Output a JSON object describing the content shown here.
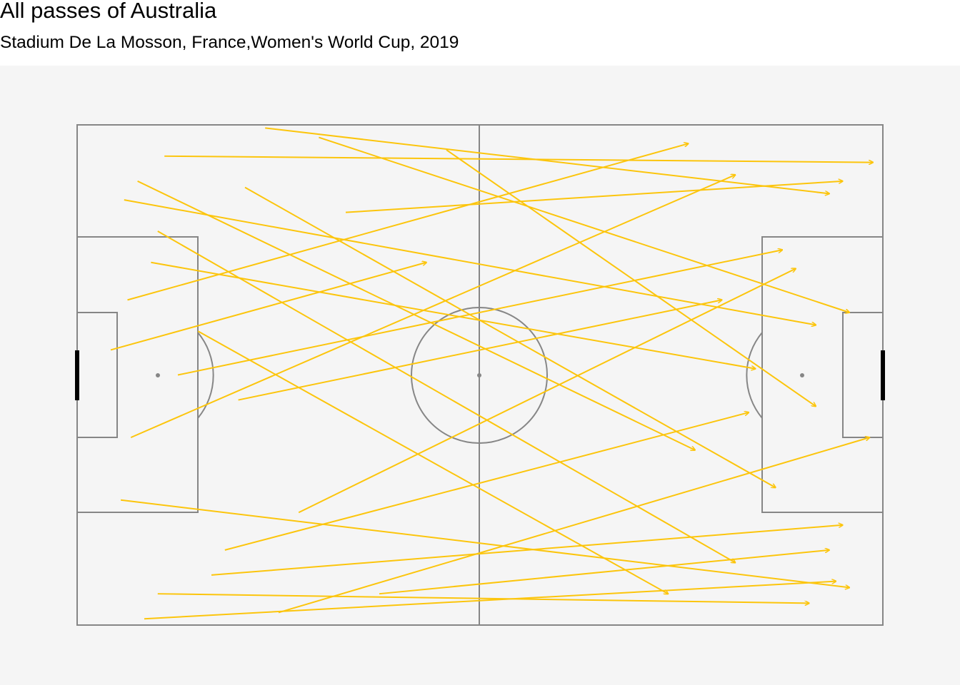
{
  "header": {
    "title": "All passes of Australia",
    "subtitle": "Stadium De La Mosson, France,Women's World Cup, 2019"
  },
  "colors": {
    "pass": "#fcc50c",
    "pitch_line": "#868686",
    "goal": "#000000",
    "panel": "#f5f5f5"
  },
  "chart_data": {
    "type": "scatter",
    "title": "All passes of Australia",
    "subtitle": "Stadium De La Mosson, France,Women's World Cup, 2019",
    "xlabel": "",
    "ylabel": "",
    "xlim": [
      0,
      120
    ],
    "ylim": [
      0,
      80
    ],
    "grid": false,
    "legend": "none",
    "series": [
      {
        "values": [
          {
            "x": 13.0,
            "y": 75.0,
            "x2": 118.5,
            "y2": 74.0
          },
          {
            "x": 6.5,
            "y": 20.0,
            "x2": 115.0,
            "y2": 6.0
          },
          {
            "x": 5.0,
            "y": 44.0,
            "x2": 52.0,
            "y2": 58.0
          },
          {
            "x": 12.0,
            "y": 5.0,
            "x2": 109.0,
            "y2": 3.5
          },
          {
            "x": 7.0,
            "y": 68.0,
            "x2": 110.0,
            "y2": 48.0
          },
          {
            "x": 7.5,
            "y": 52.0,
            "x2": 91.0,
            "y2": 77.0
          },
          {
            "x": 10.0,
            "y": 1.0,
            "x2": 113.0,
            "y2": 7.0
          },
          {
            "x": 9.0,
            "y": 71.0,
            "x2": 92.0,
            "y2": 28.0
          },
          {
            "x": 12.0,
            "y": 63.0,
            "x2": 98.0,
            "y2": 10.0
          },
          {
            "x": 28.0,
            "y": 79.5,
            "x2": 112.0,
            "y2": 69.0
          },
          {
            "x": 20.0,
            "y": 8.0,
            "x2": 114.0,
            "y2": 16.0
          },
          {
            "x": 15.0,
            "y": 40.0,
            "x2": 105.0,
            "y2": 60.0
          },
          {
            "x": 30.0,
            "y": 2.0,
            "x2": 118.0,
            "y2": 30.0
          },
          {
            "x": 8.0,
            "y": 30.0,
            "x2": 98.0,
            "y2": 72.0
          },
          {
            "x": 25.0,
            "y": 70.0,
            "x2": 104.0,
            "y2": 22.0
          },
          {
            "x": 11.0,
            "y": 58.0,
            "x2": 101.0,
            "y2": 41.0
          },
          {
            "x": 36.0,
            "y": 78.0,
            "x2": 115.0,
            "y2": 50.0
          },
          {
            "x": 22.0,
            "y": 12.0,
            "x2": 100.0,
            "y2": 34.0
          },
          {
            "x": 45.0,
            "y": 5.0,
            "x2": 112.0,
            "y2": 12.0
          },
          {
            "x": 18.0,
            "y": 47.0,
            "x2": 88.0,
            "y2": 5.0
          },
          {
            "x": 40.0,
            "y": 66.0,
            "x2": 114.0,
            "y2": 71.0
          },
          {
            "x": 33.0,
            "y": 18.0,
            "x2": 107.0,
            "y2": 57.0
          },
          {
            "x": 55.0,
            "y": 76.0,
            "x2": 110.0,
            "y2": 35.0
          },
          {
            "x": 24.0,
            "y": 36.0,
            "x2": 96.0,
            "y2": 52.0
          }
        ]
      }
    ]
  }
}
